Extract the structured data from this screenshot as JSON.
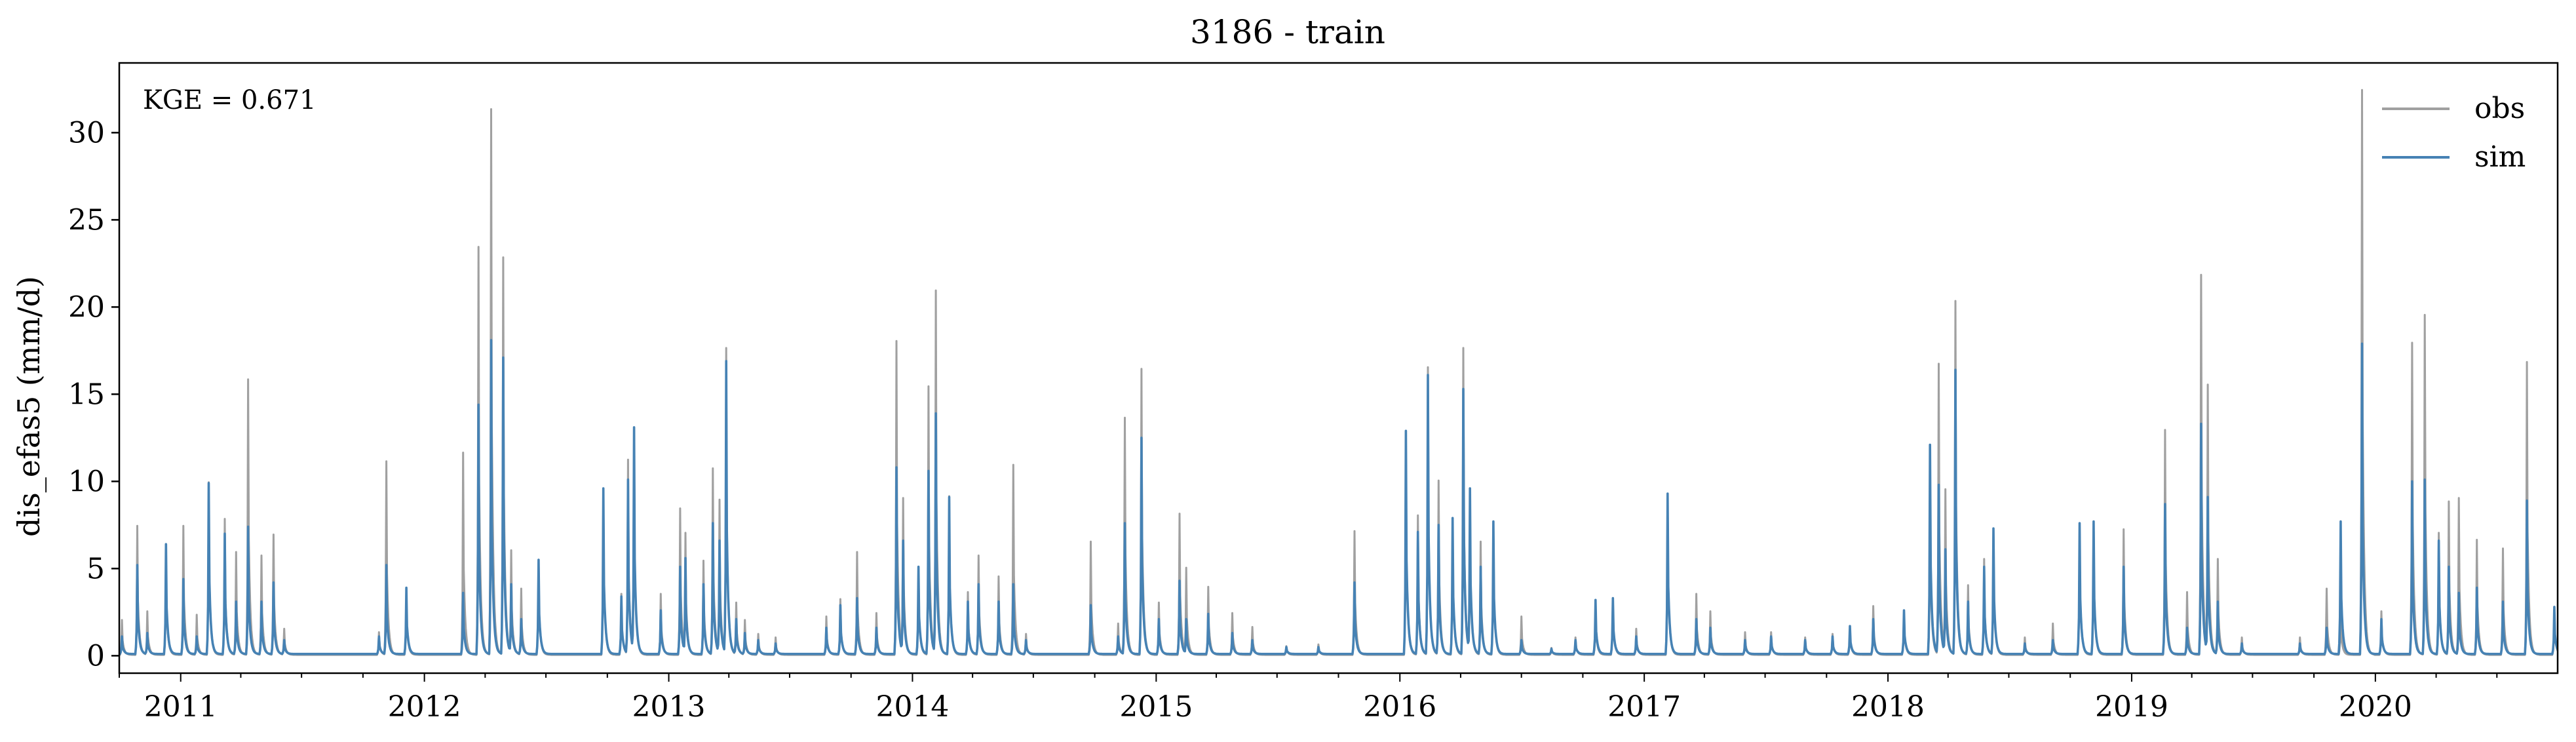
{
  "chart_data": {
    "type": "line",
    "title": "3186 - train",
    "xlabel": "",
    "ylabel": "dis_efas5 (mm/d)",
    "annotation": "KGE = 0.671",
    "xlim": [
      "2010-10-01",
      "2020-09-30"
    ],
    "ylim": [
      -1,
      34
    ],
    "yticks": [
      0,
      5,
      10,
      15,
      20,
      25,
      30
    ],
    "xtick_labels": [
      "2011",
      "2012",
      "2013",
      "2014",
      "2015",
      "2016",
      "2017",
      "2018",
      "2019",
      "2020"
    ],
    "legend": {
      "position": "top-right"
    },
    "grid": false,
    "base_values": {
      "obs": 0.05,
      "sim": 0.1
    },
    "series": [
      {
        "name": "obs",
        "color": "#a0a0a0",
        "peaks": [
          [
            "2010-10-05",
            2.0
          ],
          [
            "2010-10-28",
            7.4
          ],
          [
            "2010-11-12",
            2.5
          ],
          [
            "2010-12-10",
            6.0
          ],
          [
            "2011-01-05",
            7.4
          ],
          [
            "2011-01-25",
            2.3
          ],
          [
            "2011-02-12",
            9.9
          ],
          [
            "2011-03-08",
            7.8
          ],
          [
            "2011-03-25",
            5.9
          ],
          [
            "2011-04-12",
            15.8
          ],
          [
            "2011-05-02",
            5.7
          ],
          [
            "2011-05-20",
            6.9
          ],
          [
            "2011-06-05",
            1.5
          ],
          [
            "2011-10-25",
            1.3
          ],
          [
            "2011-11-05",
            11.1
          ],
          [
            "2011-12-05",
            3.5
          ],
          [
            "2012-02-28",
            11.6
          ],
          [
            "2012-03-22",
            23.4
          ],
          [
            "2012-04-10",
            31.3
          ],
          [
            "2012-04-28",
            22.8
          ],
          [
            "2012-05-10",
            6.0
          ],
          [
            "2012-05-25",
            3.8
          ],
          [
            "2012-06-20",
            5.4
          ],
          [
            "2012-09-25",
            9.5
          ],
          [
            "2012-10-22",
            3.5
          ],
          [
            "2012-11-01",
            11.2
          ],
          [
            "2012-11-10",
            13.0
          ],
          [
            "2012-12-20",
            3.5
          ],
          [
            "2013-01-18",
            8.4
          ],
          [
            "2013-01-26",
            7.0
          ],
          [
            "2013-02-22",
            5.4
          ],
          [
            "2013-03-08",
            10.7
          ],
          [
            "2013-03-18",
            8.9
          ],
          [
            "2013-03-28",
            17.6
          ],
          [
            "2013-04-12",
            3.0
          ],
          [
            "2013-04-25",
            2.0
          ],
          [
            "2013-05-15",
            1.2
          ],
          [
            "2013-06-10",
            1.0
          ],
          [
            "2013-08-25",
            2.2
          ],
          [
            "2013-09-15",
            3.2
          ],
          [
            "2013-10-10",
            5.9
          ],
          [
            "2013-11-08",
            2.4
          ],
          [
            "2013-12-08",
            18.0
          ],
          [
            "2013-12-18",
            9.0
          ],
          [
            "2014-01-10",
            5.0
          ],
          [
            "2014-01-25",
            15.4
          ],
          [
            "2014-02-05",
            20.9
          ],
          [
            "2014-02-25",
            9.1
          ],
          [
            "2014-03-25",
            3.6
          ],
          [
            "2014-04-10",
            5.7
          ],
          [
            "2014-05-10",
            4.5
          ],
          [
            "2014-06-01",
            10.9
          ],
          [
            "2014-06-20",
            1.2
          ],
          [
            "2014-09-25",
            6.5
          ],
          [
            "2014-11-05",
            1.8
          ],
          [
            "2014-11-15",
            13.6
          ],
          [
            "2014-12-10",
            16.4
          ],
          [
            "2015-01-05",
            3.0
          ],
          [
            "2015-02-05",
            8.1
          ],
          [
            "2015-02-15",
            5.0
          ],
          [
            "2015-03-20",
            3.9
          ],
          [
            "2015-04-25",
            2.4
          ],
          [
            "2015-05-25",
            1.6
          ],
          [
            "2015-07-15",
            0.5
          ],
          [
            "2015-09-01",
            0.6
          ],
          [
            "2015-10-25",
            7.1
          ],
          [
            "2016-01-10",
            12.8
          ],
          [
            "2016-01-28",
            8.0
          ],
          [
            "2016-02-12",
            16.5
          ],
          [
            "2016-02-28",
            10.0
          ],
          [
            "2016-03-20",
            7.8
          ],
          [
            "2016-04-05",
            17.6
          ],
          [
            "2016-04-15",
            9.5
          ],
          [
            "2016-05-01",
            6.5
          ],
          [
            "2016-05-20",
            7.6
          ],
          [
            "2016-07-01",
            2.2
          ],
          [
            "2016-08-15",
            0.4
          ],
          [
            "2016-09-20",
            1.0
          ],
          [
            "2016-10-20",
            2.8
          ],
          [
            "2016-11-15",
            3.2
          ],
          [
            "2016-12-20",
            1.5
          ],
          [
            "2017-02-05",
            9.2
          ],
          [
            "2017-03-20",
            3.5
          ],
          [
            "2017-04-10",
            2.5
          ],
          [
            "2017-06-01",
            1.3
          ],
          [
            "2017-07-10",
            1.3
          ],
          [
            "2017-08-30",
            1.0
          ],
          [
            "2017-10-10",
            1.2
          ],
          [
            "2017-11-05",
            1.6
          ],
          [
            "2017-12-10",
            2.8
          ],
          [
            "2018-01-25",
            2.5
          ],
          [
            "2018-03-05",
            10.0
          ],
          [
            "2018-03-18",
            16.7
          ],
          [
            "2018-03-28",
            9.5
          ],
          [
            "2018-04-12",
            20.3
          ],
          [
            "2018-05-01",
            4.0
          ],
          [
            "2018-05-25",
            5.5
          ],
          [
            "2018-06-08",
            7.2
          ],
          [
            "2018-07-25",
            1.0
          ],
          [
            "2018-09-05",
            1.8
          ],
          [
            "2018-10-15",
            7.5
          ],
          [
            "2018-11-05",
            7.6
          ],
          [
            "2018-12-20",
            7.2
          ],
          [
            "2019-02-20",
            12.9
          ],
          [
            "2019-03-25",
            3.6
          ],
          [
            "2019-04-15",
            21.8
          ],
          [
            "2019-04-25",
            15.5
          ],
          [
            "2019-05-10",
            5.5
          ],
          [
            "2019-06-15",
            1.0
          ],
          [
            "2019-09-10",
            1.0
          ],
          [
            "2019-10-20",
            3.8
          ],
          [
            "2019-11-10",
            2.5
          ],
          [
            "2019-12-12",
            32.4
          ],
          [
            "2020-01-10",
            2.5
          ],
          [
            "2020-02-25",
            17.9
          ],
          [
            "2020-03-15",
            19.5
          ],
          [
            "2020-04-05",
            7.0
          ],
          [
            "2020-04-20",
            8.8
          ],
          [
            "2020-05-05",
            9.0
          ],
          [
            "2020-06-01",
            6.6
          ],
          [
            "2020-07-10",
            6.1
          ],
          [
            "2020-08-15",
            16.8
          ],
          [
            "2020-09-25",
            2.5
          ]
        ]
      },
      {
        "name": "sim",
        "color": "#4682b4",
        "peaks": [
          [
            "2010-10-05",
            1.0
          ],
          [
            "2010-10-28",
            5.1
          ],
          [
            "2010-11-12",
            1.2
          ],
          [
            "2010-12-10",
            6.3
          ],
          [
            "2011-01-05",
            4.3
          ],
          [
            "2011-01-25",
            1.0
          ],
          [
            "2011-02-12",
            9.8
          ],
          [
            "2011-03-08",
            6.9
          ],
          [
            "2011-03-25",
            3.0
          ],
          [
            "2011-04-12",
            7.3
          ],
          [
            "2011-05-02",
            3.0
          ],
          [
            "2011-05-20",
            4.1
          ],
          [
            "2011-06-05",
            0.8
          ],
          [
            "2011-10-25",
            1.0
          ],
          [
            "2011-11-05",
            5.1
          ],
          [
            "2011-12-05",
            3.8
          ],
          [
            "2012-02-28",
            3.5
          ],
          [
            "2012-03-22",
            14.3
          ],
          [
            "2012-04-10",
            18.0
          ],
          [
            "2012-04-28",
            17.0
          ],
          [
            "2012-05-10",
            4.0
          ],
          [
            "2012-05-25",
            2.0
          ],
          [
            "2012-06-20",
            5.4
          ],
          [
            "2012-09-25",
            9.5
          ],
          [
            "2012-10-22",
            3.3
          ],
          [
            "2012-11-01",
            10.0
          ],
          [
            "2012-11-10",
            13.0
          ],
          [
            "2012-12-20",
            2.5
          ],
          [
            "2013-01-18",
            5.0
          ],
          [
            "2013-01-26",
            5.5
          ],
          [
            "2013-02-22",
            4.0
          ],
          [
            "2013-03-08",
            7.5
          ],
          [
            "2013-03-18",
            6.5
          ],
          [
            "2013-03-28",
            16.8
          ],
          [
            "2013-04-12",
            2.0
          ],
          [
            "2013-04-25",
            1.2
          ],
          [
            "2013-05-15",
            0.8
          ],
          [
            "2013-06-10",
            0.6
          ],
          [
            "2013-08-25",
            1.5
          ],
          [
            "2013-09-15",
            2.8
          ],
          [
            "2013-10-10",
            3.2
          ],
          [
            "2013-11-08",
            1.5
          ],
          [
            "2013-12-08",
            10.7
          ],
          [
            "2013-12-18",
            6.5
          ],
          [
            "2014-01-10",
            5.0
          ],
          [
            "2014-01-25",
            10.5
          ],
          [
            "2014-02-05",
            13.8
          ],
          [
            "2014-02-25",
            9.0
          ],
          [
            "2014-03-25",
            3.0
          ],
          [
            "2014-04-10",
            4.0
          ],
          [
            "2014-05-10",
            3.0
          ],
          [
            "2014-06-01",
            4.0
          ],
          [
            "2014-06-20",
            0.8
          ],
          [
            "2014-09-25",
            2.8
          ],
          [
            "2014-11-05",
            1.0
          ],
          [
            "2014-11-15",
            7.5
          ],
          [
            "2014-12-10",
            12.4
          ],
          [
            "2015-01-05",
            2.0
          ],
          [
            "2015-02-05",
            4.2
          ],
          [
            "2015-02-15",
            2.0
          ],
          [
            "2015-03-20",
            2.3
          ],
          [
            "2015-04-25",
            1.2
          ],
          [
            "2015-05-25",
            0.8
          ],
          [
            "2015-07-15",
            0.4
          ],
          [
            "2015-09-01",
            0.4
          ],
          [
            "2015-10-25",
            4.1
          ],
          [
            "2016-01-10",
            12.8
          ],
          [
            "2016-01-28",
            7.0
          ],
          [
            "2016-02-12",
            16.0
          ],
          [
            "2016-02-28",
            7.4
          ],
          [
            "2016-03-20",
            7.8
          ],
          [
            "2016-04-05",
            15.2
          ],
          [
            "2016-04-15",
            9.5
          ],
          [
            "2016-05-01",
            5.0
          ],
          [
            "2016-05-20",
            7.6
          ],
          [
            "2016-07-01",
            0.8
          ],
          [
            "2016-08-15",
            0.3
          ],
          [
            "2016-09-20",
            0.8
          ],
          [
            "2016-10-20",
            3.1
          ],
          [
            "2016-11-15",
            3.2
          ],
          [
            "2016-12-20",
            1.0
          ],
          [
            "2017-02-05",
            9.2
          ],
          [
            "2017-03-20",
            2.0
          ],
          [
            "2017-04-10",
            1.5
          ],
          [
            "2017-06-01",
            0.8
          ],
          [
            "2017-07-10",
            1.0
          ],
          [
            "2017-08-30",
            0.8
          ],
          [
            "2017-10-10",
            1.0
          ],
          [
            "2017-11-05",
            1.6
          ],
          [
            "2017-12-10",
            2.0
          ],
          [
            "2018-01-25",
            2.5
          ],
          [
            "2018-03-05",
            12.0
          ],
          [
            "2018-03-18",
            9.7
          ],
          [
            "2018-03-28",
            6.0
          ],
          [
            "2018-04-12",
            16.3
          ],
          [
            "2018-05-01",
            3.0
          ],
          [
            "2018-05-25",
            5.0
          ],
          [
            "2018-06-08",
            7.2
          ],
          [
            "2018-07-25",
            0.6
          ],
          [
            "2018-09-05",
            0.8
          ],
          [
            "2018-10-15",
            7.5
          ],
          [
            "2018-11-05",
            7.6
          ],
          [
            "2018-12-20",
            5.0
          ],
          [
            "2019-02-20",
            8.6
          ],
          [
            "2019-03-25",
            1.5
          ],
          [
            "2019-04-15",
            13.2
          ],
          [
            "2019-04-25",
            9.0
          ],
          [
            "2019-05-10",
            3.0
          ],
          [
            "2019-06-15",
            0.6
          ],
          [
            "2019-09-10",
            0.6
          ],
          [
            "2019-10-20",
            1.5
          ],
          [
            "2019-11-10",
            7.6
          ],
          [
            "2019-12-12",
            17.8
          ],
          [
            "2020-01-10",
            2.0
          ],
          [
            "2020-02-25",
            9.9
          ],
          [
            "2020-03-15",
            10.0
          ],
          [
            "2020-04-05",
            6.5
          ],
          [
            "2020-04-20",
            5.0
          ],
          [
            "2020-05-05",
            3.5
          ],
          [
            "2020-06-01",
            3.8
          ],
          [
            "2020-07-10",
            3.0
          ],
          [
            "2020-08-15",
            8.8
          ],
          [
            "2020-09-25",
            2.7
          ]
        ]
      }
    ]
  }
}
